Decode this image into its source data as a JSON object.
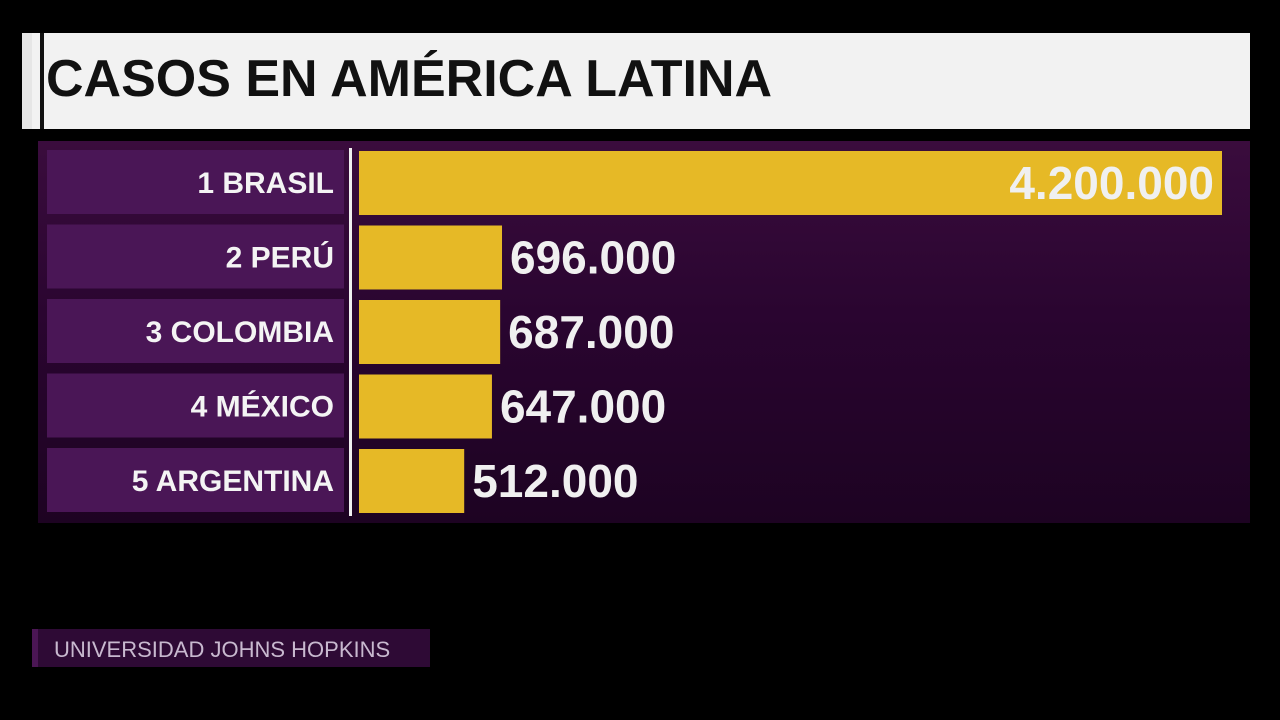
{
  "title": "CASOS EN AMÉRICA LATINA",
  "source": "UNIVERSIDAD JOHNS HOPKINS",
  "colors": {
    "bar": "#e6b926",
    "label_box": "#4a1656",
    "panel": "#2a0530",
    "value_text": "#f0f0f0",
    "title_bg": "#f2f2f2"
  },
  "chart_data": {
    "type": "bar",
    "orientation": "horizontal",
    "title": "CASOS EN AMÉRICA LATINA",
    "categories": [
      "1 BRASIL",
      "2 PERÚ",
      "3 COLOMBIA",
      "4 MÉXICO",
      "5 ARGENTINA"
    ],
    "values": [
      4200000,
      696000,
      687000,
      647000,
      512000
    ],
    "value_labels": [
      "4.200.000",
      "696.000",
      "687.000",
      "647.000",
      "512.000"
    ],
    "xlabel": "",
    "ylabel": "",
    "grid": false,
    "legend": "none"
  }
}
